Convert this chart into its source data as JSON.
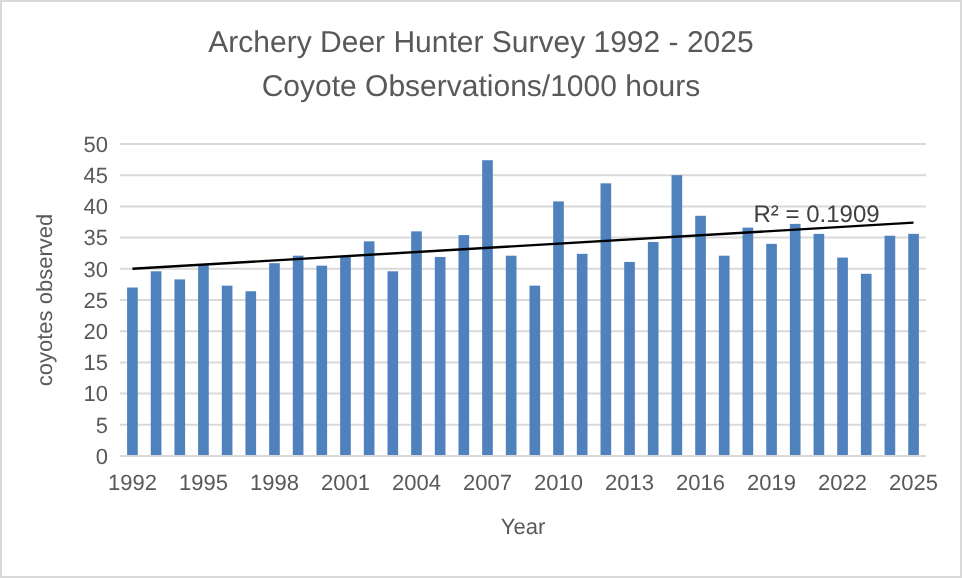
{
  "chart_data": {
    "type": "bar",
    "title": "Archery Deer Hunter Survey 1992 - 2025\nCoyote Observations/1000 hours",
    "xlabel": "Year",
    "ylabel": "coyotes observed",
    "categories": [
      "1992",
      null,
      null,
      "1995",
      null,
      null,
      "1998",
      null,
      null,
      "2001",
      null,
      null,
      "2004",
      null,
      null,
      "2007",
      null,
      null,
      "2010",
      null,
      null,
      "2013",
      null,
      null,
      "2016",
      null,
      null,
      "2019",
      null,
      null,
      "2022",
      null,
      null,
      "2025"
    ],
    "series": [
      {
        "color": "#4f81bd",
        "values": [
          27,
          29.6,
          28.3,
          30.6,
          27.3,
          26.4,
          30.9,
          32.1,
          30.5,
          32.1,
          34.4,
          29.6,
          36,
          31.9,
          35.4,
          47.4,
          32.1,
          27.3,
          40.8,
          32.4,
          43.7,
          31.1,
          34.3,
          45,
          38.5,
          32.1,
          36.6,
          34,
          37.2,
          35.6,
          31.8,
          29.2,
          35.3,
          35.6
        ]
      },
      {
        "type": "line",
        "color": "#000000",
        "values": [
          30,
          null,
          null,
          null,
          null,
          null,
          null,
          null,
          null,
          null,
          null,
          null,
          null,
          null,
          null,
          null,
          null,
          null,
          null,
          null,
          null,
          null,
          null,
          null,
          null,
          null,
          null,
          null,
          null,
          null,
          null,
          null,
          null,
          37.4
        ]
      }
    ],
    "annotations": [
      {
        "text": "R² = 0.1909",
        "x": "2019",
        "y": 36.6
      }
    ],
    "ylim": [
      0,
      50
    ],
    "yticks": [
      0,
      5,
      10,
      15,
      20,
      25,
      30,
      35,
      40,
      45,
      50
    ],
    "grid": "y"
  }
}
